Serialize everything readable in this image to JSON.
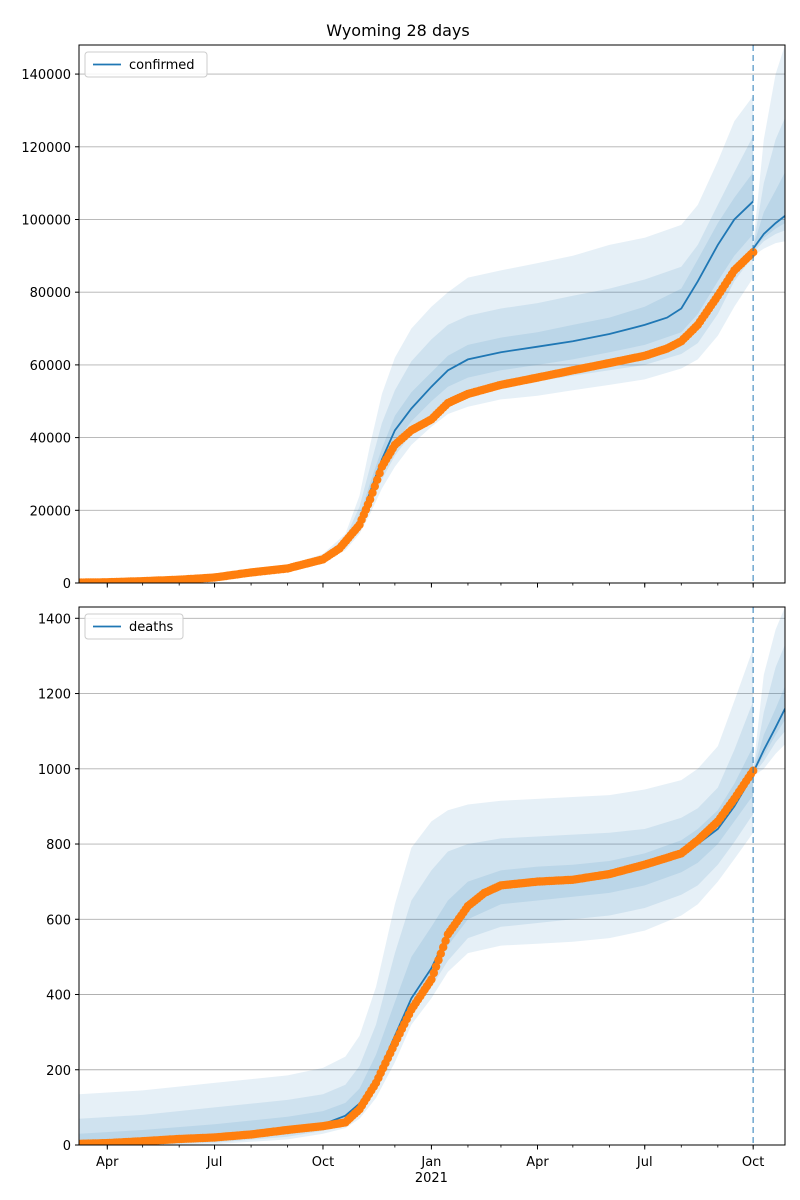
{
  "title": "Wyoming 28 days",
  "colors": {
    "model_line": "#1f77b4",
    "observed": "#ff7f0e",
    "band": "#1f77b4",
    "grid": "#b0b0b0",
    "vline": "#1f77b4"
  },
  "x_tick_labels": [
    {
      "date": "2020-04-01",
      "label": "Apr",
      "sub": ""
    },
    {
      "date": "2020-07-01",
      "label": "Jul",
      "sub": ""
    },
    {
      "date": "2020-10-01",
      "label": "Oct",
      "sub": ""
    },
    {
      "date": "2021-01-01",
      "label": "Jan",
      "sub": "2021"
    },
    {
      "date": "2021-04-01",
      "label": "Apr",
      "sub": ""
    },
    {
      "date": "2021-07-01",
      "label": "Jul",
      "sub": ""
    },
    {
      "date": "2021-10-01",
      "label": "Oct",
      "sub": ""
    }
  ],
  "chart_data": [
    {
      "type": "line",
      "grid": "y",
      "legend_position": "top-left",
      "xlim": [
        "2020-03-08",
        "2021-10-28"
      ],
      "ylim": [
        0,
        148000
      ],
      "yticks": [
        0,
        20000,
        40000,
        60000,
        80000,
        100000,
        120000,
        140000
      ],
      "forecast_start": "2021-10-01",
      "series": [
        {
          "name": "confirmed",
          "kind": "model_median",
          "x": [
            "2020-03-08",
            "2020-05-01",
            "2020-07-01",
            "2020-09-01",
            "2020-10-01",
            "2020-10-20",
            "2020-11-01",
            "2020-11-10",
            "2020-11-20",
            "2020-12-01",
            "2020-12-15",
            "2021-01-01",
            "2021-01-15",
            "2021-02-01",
            "2021-03-01",
            "2021-04-01",
            "2021-05-01",
            "2021-06-01",
            "2021-07-01",
            "2021-07-20",
            "2021-08-01",
            "2021-08-15",
            "2021-09-01",
            "2021-09-15",
            "2021-10-01"
          ],
          "y": [
            100,
            600,
            1500,
            4000,
            6500,
            10500,
            17000,
            25000,
            34000,
            42000,
            48000,
            54000,
            58500,
            61500,
            63500,
            65000,
            66500,
            68500,
            71000,
            73000,
            75500,
            83000,
            93000,
            100000,
            105000
          ]
        },
        {
          "name": "",
          "kind": "forecast_median",
          "x": [
            "2021-10-01",
            "2021-10-10",
            "2021-10-20",
            "2021-10-28"
          ],
          "y": [
            92000,
            96000,
            99000,
            101000
          ]
        },
        {
          "name": "",
          "kind": "observed",
          "x": [
            "2020-03-08",
            "2020-04-01",
            "2020-05-01",
            "2020-06-01",
            "2020-07-01",
            "2020-08-01",
            "2020-09-01",
            "2020-10-01",
            "2020-10-15",
            "2020-11-01",
            "2020-11-10",
            "2020-11-20",
            "2020-12-01",
            "2020-12-15",
            "2021-01-01",
            "2021-01-15",
            "2021-02-01",
            "2021-03-01",
            "2021-04-01",
            "2021-05-01",
            "2021-06-01",
            "2021-07-01",
            "2021-07-20",
            "2021-08-01",
            "2021-08-15",
            "2021-09-01",
            "2021-09-15",
            "2021-10-01"
          ],
          "y": [
            100,
            200,
            500,
            900,
            1500,
            2900,
            4000,
            6500,
            9500,
            16000,
            23000,
            32000,
            38000,
            42000,
            45000,
            49500,
            52000,
            54500,
            56500,
            58500,
            60500,
            62500,
            64500,
            66500,
            71000,
            79000,
            86000,
            91000
          ]
        }
      ],
      "bands": [
        {
          "x": [
            "2020-03-08",
            "2020-07-01",
            "2020-09-01",
            "2020-10-01",
            "2020-10-20",
            "2020-11-01",
            "2020-11-10",
            "2020-11-20",
            "2020-12-01",
            "2020-12-15",
            "2021-01-01",
            "2021-01-15",
            "2021-02-01",
            "2021-03-01",
            "2021-04-01",
            "2021-05-01",
            "2021-06-01",
            "2021-07-01",
            "2021-08-01",
            "2021-08-15",
            "2021-09-01",
            "2021-09-15",
            "2021-10-01"
          ],
          "lo": [
            80,
            1300,
            3500,
            5800,
            9000,
            13500,
            19000,
            26000,
            32000,
            38000,
            43000,
            46500,
            48500,
            50500,
            51500,
            53000,
            54500,
            56000,
            59000,
            61500,
            68000,
            76000,
            84000
          ],
          "hi": [
            200,
            1800,
            4800,
            8000,
            13500,
            24000,
            38000,
            52000,
            62000,
            70000,
            76000,
            80000,
            84000,
            86000,
            88000,
            90000,
            93000,
            95000,
            98500,
            104000,
            116000,
            127000,
            134000
          ]
        },
        {
          "x": [
            "2020-03-08",
            "2020-07-01",
            "2020-09-01",
            "2020-10-01",
            "2020-10-20",
            "2020-11-01",
            "2020-11-10",
            "2020-11-20",
            "2020-12-01",
            "2020-12-15",
            "2021-01-01",
            "2021-01-15",
            "2021-02-01",
            "2021-03-01",
            "2021-04-01",
            "2021-05-01",
            "2021-06-01",
            "2021-07-01",
            "2021-08-01",
            "2021-08-15",
            "2021-09-01",
            "2021-09-15",
            "2021-10-01"
          ],
          "lo": [
            90,
            1350,
            3700,
            6100,
            9600,
            14800,
            21000,
            28500,
            35000,
            41000,
            46000,
            49500,
            52000,
            54000,
            55500,
            57000,
            58500,
            60000,
            63000,
            66000,
            74000,
            83000,
            90000
          ],
          "hi": [
            160,
            1700,
            4500,
            7500,
            12500,
            21000,
            32000,
            44000,
            53000,
            61000,
            67000,
            71000,
            73500,
            75500,
            77000,
            79000,
            81000,
            83500,
            87000,
            93000,
            104000,
            113000,
            123000
          ]
        },
        {
          "x": [
            "2020-03-08",
            "2020-07-01",
            "2020-09-01",
            "2020-10-01",
            "2020-10-20",
            "2020-11-01",
            "2020-11-10",
            "2020-11-20",
            "2020-12-01",
            "2020-12-15",
            "2021-01-01",
            "2021-01-15",
            "2021-02-01",
            "2021-03-01",
            "2021-04-01",
            "2021-05-01",
            "2021-06-01",
            "2021-07-01",
            "2021-08-01",
            "2021-08-15",
            "2021-09-01",
            "2021-09-15",
            "2021-10-01"
          ],
          "lo": [
            95,
            1400,
            3850,
            6300,
            10000,
            15800,
            23000,
            31000,
            38500,
            44500,
            50000,
            54000,
            56500,
            58500,
            60000,
            61500,
            63500,
            65500,
            69000,
            74000,
            83000,
            90000,
            96000
          ],
          "hi": [
            130,
            1600,
            4200,
            6900,
            11200,
            18500,
            27500,
            37000,
            46000,
            52500,
            58000,
            62500,
            65500,
            67500,
            69000,
            71000,
            73000,
            76000,
            81000,
            89000,
            99000,
            106000,
            113000
          ]
        },
        {
          "x": [
            "2021-10-01",
            "2021-10-10",
            "2021-10-20",
            "2021-10-28"
          ],
          "lo": [
            90000,
            92000,
            93500,
            94000
          ],
          "hi": [
            93000,
            122000,
            140000,
            148000
          ]
        },
        {
          "x": [
            "2021-10-01",
            "2021-10-10",
            "2021-10-20",
            "2021-10-28"
          ],
          "lo": [
            91000,
            94000,
            96000,
            97000
          ],
          "hi": [
            92500,
            110000,
            122000,
            128000
          ]
        },
        {
          "x": [
            "2021-10-01",
            "2021-10-10",
            "2021-10-20",
            "2021-10-28"
          ],
          "lo": [
            91500,
            95000,
            97500,
            99000
          ],
          "hi": [
            92500,
            102000,
            108000,
            113000
          ]
        }
      ]
    },
    {
      "type": "line",
      "grid": "y",
      "legend_position": "top-left",
      "xlim": [
        "2020-03-08",
        "2021-10-28"
      ],
      "ylim": [
        0,
        1430
      ],
      "yticks": [
        0,
        200,
        400,
        600,
        800,
        1000,
        1200,
        1400
      ],
      "forecast_start": "2021-10-01",
      "series": [
        {
          "name": "deaths",
          "kind": "model_median",
          "x": [
            "2020-03-08",
            "2020-05-01",
            "2020-07-01",
            "2020-09-01",
            "2020-10-01",
            "2020-10-20",
            "2020-11-01",
            "2020-11-15",
            "2020-12-01",
            "2020-12-15",
            "2021-01-01",
            "2021-01-15",
            "2021-02-01",
            "2021-03-01",
            "2021-04-01",
            "2021-05-01",
            "2021-06-01",
            "2021-07-01",
            "2021-08-01",
            "2021-08-15",
            "2021-09-01",
            "2021-09-15",
            "2021-10-01"
          ],
          "y": [
            3,
            8,
            20,
            38,
            55,
            78,
            110,
            175,
            290,
            390,
            470,
            560,
            640,
            690,
            700,
            705,
            715,
            740,
            775,
            800,
            840,
            900,
            985
          ]
        },
        {
          "name": "",
          "kind": "forecast_median",
          "x": [
            "2021-10-01",
            "2021-10-10",
            "2021-10-20",
            "2021-10-28"
          ],
          "y": [
            990,
            1050,
            1110,
            1160
          ]
        },
        {
          "name": "",
          "kind": "observed",
          "x": [
            "2020-03-08",
            "2020-04-01",
            "2020-05-01",
            "2020-06-01",
            "2020-07-01",
            "2020-08-01",
            "2020-09-01",
            "2020-10-01",
            "2020-10-20",
            "2020-11-01",
            "2020-11-15",
            "2020-12-01",
            "2020-12-15",
            "2021-01-01",
            "2021-01-15",
            "2021-02-01",
            "2021-02-15",
            "2021-03-01",
            "2021-04-01",
            "2021-05-01",
            "2021-06-01",
            "2021-07-01",
            "2021-08-01",
            "2021-08-15",
            "2021-09-01",
            "2021-09-15",
            "2021-10-01"
          ],
          "y": [
            3,
            5,
            10,
            16,
            20,
            28,
            40,
            50,
            60,
            95,
            165,
            270,
            360,
            440,
            560,
            635,
            670,
            690,
            700,
            705,
            720,
            745,
            775,
            810,
            860,
            920,
            995
          ]
        }
      ],
      "bands": [
        {
          "x": [
            "2020-03-08",
            "2020-05-01",
            "2020-07-01",
            "2020-09-01",
            "2020-10-01",
            "2020-10-20",
            "2020-11-01",
            "2020-11-15",
            "2020-12-01",
            "2020-12-15",
            "2021-01-01",
            "2021-01-15",
            "2021-02-01",
            "2021-03-01",
            "2021-04-01",
            "2021-05-01",
            "2021-06-01",
            "2021-07-01",
            "2021-08-01",
            "2021-08-15",
            "2021-09-01",
            "2021-09-15",
            "2021-10-01"
          ],
          "lo": [
            0,
            0,
            2,
            15,
            30,
            45,
            70,
            125,
            220,
            320,
            390,
            460,
            510,
            530,
            535,
            540,
            550,
            570,
            610,
            640,
            700,
            760,
            830
          ],
          "hi": [
            135,
            145,
            165,
            185,
            205,
            235,
            290,
            420,
            640,
            790,
            860,
            890,
            905,
            915,
            920,
            925,
            930,
            945,
            970,
            1000,
            1060,
            1180,
            1320
          ]
        },
        {
          "x": [
            "2020-03-08",
            "2020-05-01",
            "2020-07-01",
            "2020-09-01",
            "2020-10-01",
            "2020-10-20",
            "2020-11-01",
            "2020-11-15",
            "2020-12-01",
            "2020-12-15",
            "2021-01-01",
            "2021-01-15",
            "2021-02-01",
            "2021-03-01",
            "2021-04-01",
            "2021-05-01",
            "2021-06-01",
            "2021-07-01",
            "2021-08-01",
            "2021-08-15",
            "2021-09-01",
            "2021-09-15",
            "2021-10-01"
          ],
          "lo": [
            0,
            0,
            6,
            22,
            38,
            55,
            84,
            145,
            245,
            345,
            420,
            490,
            550,
            580,
            590,
            600,
            610,
            630,
            665,
            690,
            745,
            805,
            880
          ],
          "hi": [
            70,
            80,
            100,
            120,
            135,
            160,
            210,
            320,
            510,
            650,
            730,
            780,
            800,
            815,
            820,
            825,
            830,
            840,
            870,
            895,
            950,
            1050,
            1180
          ]
        },
        {
          "x": [
            "2020-03-08",
            "2020-05-01",
            "2020-07-01",
            "2020-09-01",
            "2020-10-01",
            "2020-10-20",
            "2020-11-01",
            "2020-11-15",
            "2020-12-01",
            "2020-12-15",
            "2021-01-01",
            "2021-01-15",
            "2021-02-01",
            "2021-03-01",
            "2021-04-01",
            "2021-05-01",
            "2021-06-01",
            "2021-07-01",
            "2021-08-01",
            "2021-08-15",
            "2021-09-01",
            "2021-09-15",
            "2021-10-01"
          ],
          "lo": [
            0,
            2,
            12,
            28,
            44,
            63,
            95,
            158,
            265,
            365,
            445,
            530,
            600,
            640,
            650,
            660,
            670,
            690,
            725,
            750,
            800,
            860,
            930
          ],
          "hi": [
            30,
            40,
            55,
            75,
            90,
            112,
            150,
            240,
            380,
            500,
            580,
            650,
            700,
            730,
            740,
            745,
            755,
            775,
            810,
            840,
            890,
            960,
            1060
          ]
        },
        {
          "x": [
            "2021-10-01",
            "2021-10-10",
            "2021-10-20",
            "2021-10-28"
          ],
          "lo": [
            980,
            1000,
            1040,
            1065
          ],
          "hi": [
            1000,
            1250,
            1370,
            1430
          ]
        },
        {
          "x": [
            "2021-10-01",
            "2021-10-10",
            "2021-10-20",
            "2021-10-28"
          ],
          "lo": [
            985,
            1020,
            1070,
            1100
          ],
          "hi": [
            995,
            1150,
            1270,
            1330
          ]
        },
        {
          "x": [
            "2021-10-01",
            "2021-10-10",
            "2021-10-20",
            "2021-10-28"
          ],
          "lo": [
            988,
            1035,
            1090,
            1130
          ],
          "hi": [
            993,
            1090,
            1160,
            1220
          ]
        }
      ]
    }
  ]
}
